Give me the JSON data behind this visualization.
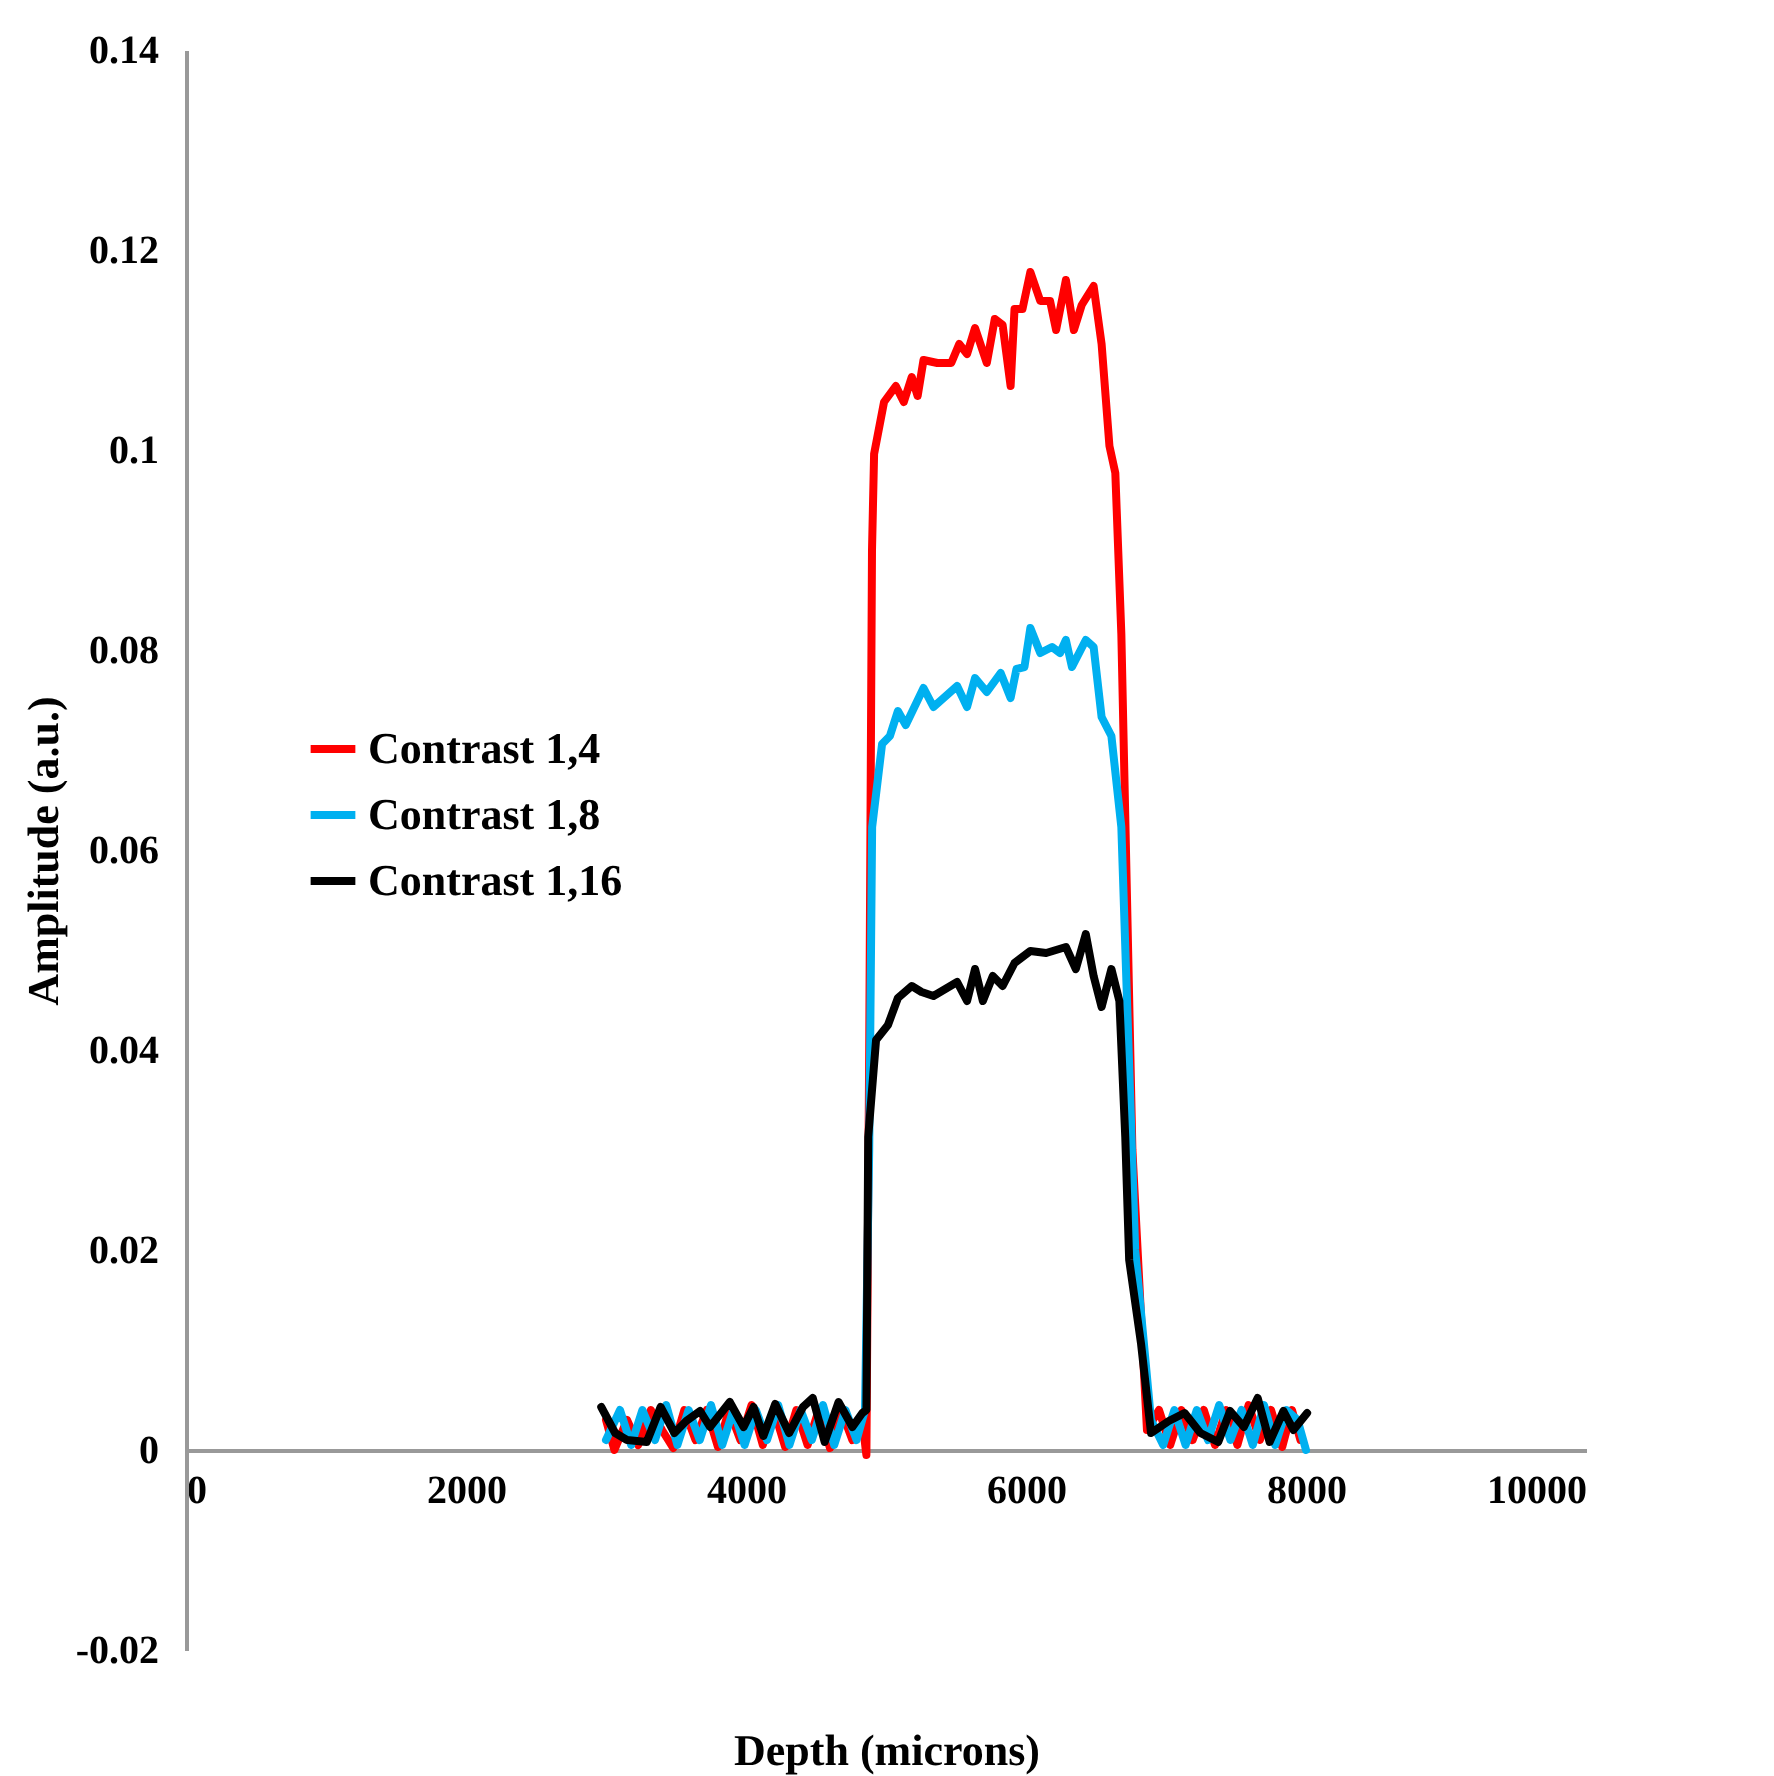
{
  "chart_data": {
    "type": "line",
    "xlabel": "Depth (microns)",
    "ylabel": "Amplitude (a.u.)",
    "xlim": [
      0,
      10000
    ],
    "xticks": [
      0,
      2000,
      4000,
      6000,
      8000,
      10000
    ],
    "ylim": [
      -0.02,
      0.14
    ],
    "yticks": [
      -0.02,
      0,
      0.02,
      0.04,
      0.06,
      0.08,
      0.1,
      0.12,
      0.14
    ],
    "grid": false,
    "legend": "left",
    "line_style": "solid",
    "series": [
      {
        "name": "Contrast 1,4",
        "color": "#ff0000",
        "x": [
          3000,
          3060,
          3150,
          3230,
          3320,
          3400,
          3480,
          3560,
          3640,
          3720,
          3800,
          3880,
          3960,
          4040,
          4120,
          4200,
          4280,
          4360,
          4440,
          4520,
          4600,
          4680,
          4760,
          4830,
          4860,
          4880,
          4900,
          4915,
          4986,
          5070,
          5127,
          5184,
          5226,
          5268,
          5367,
          5466,
          5523,
          5579,
          5636,
          5720,
          5777,
          5833,
          5890,
          5918,
          5975,
          6031,
          6102,
          6172,
          6215,
          6285,
          6342,
          6398,
          6483,
          6540,
          6596,
          6638,
          6681,
          6760,
          6864,
          6950,
          7030,
          7110,
          7190,
          7270,
          7350,
          7430,
          7510,
          7590,
          7670,
          7750,
          7830,
          7900,
          7960
        ],
        "values": [
          0.003,
          0.0,
          0.003,
          0.0005,
          0.004,
          0.002,
          0.0002,
          0.004,
          0.001,
          0.004,
          0.0003,
          0.004,
          0.001,
          0.0045,
          0.0005,
          0.004,
          0.0003,
          0.004,
          0.0005,
          0.004,
          0.0002,
          0.004,
          0.001,
          0.003,
          -0.0005,
          0.04,
          0.09,
          0.0996,
          0.1048,
          0.1064,
          0.1048,
          0.1073,
          0.1054,
          0.109,
          0.1087,
          0.1087,
          0.1106,
          0.1096,
          0.1122,
          0.1087,
          0.1131,
          0.1125,
          0.1064,
          0.1141,
          0.1141,
          0.1178,
          0.1149,
          0.1149,
          0.112,
          0.117,
          0.112,
          0.1145,
          0.1164,
          0.1106,
          0.1004,
          0.0977,
          0.0816,
          0.03,
          0.002,
          0.004,
          0.0005,
          0.004,
          0.001,
          0.004,
          0.0005,
          0.004,
          0.0005,
          0.0045,
          0.001,
          0.004,
          0.0003,
          0.004,
          0.001
        ]
      },
      {
        "name": "Contrast 1,8",
        "color": "#00b0f0",
        "x": [
          3000,
          3100,
          3180,
          3260,
          3350,
          3430,
          3510,
          3590,
          3670,
          3750,
          3830,
          3910,
          3990,
          4070,
          4150,
          4230,
          4310,
          4390,
          4470,
          4550,
          4630,
          4710,
          4790,
          4850,
          4880,
          4901,
          4972,
          5028,
          5085,
          5141,
          5268,
          5339,
          5508,
          5579,
          5636,
          5720,
          5819,
          5890,
          5932,
          5989,
          6031,
          6102,
          6186,
          6243,
          6285,
          6328,
          6427,
          6483,
          6540,
          6610,
          6681,
          6780,
          6893,
          6980,
          7060,
          7140,
          7220,
          7300,
          7380,
          7460,
          7540,
          7620,
          7700,
          7780,
          7860,
          7940,
          8000
        ],
        "values": [
          0.001,
          0.004,
          0.0005,
          0.004,
          0.001,
          0.0045,
          0.0005,
          0.004,
          0.001,
          0.0045,
          0.0005,
          0.004,
          0.0005,
          0.004,
          0.001,
          0.0045,
          0.0005,
          0.004,
          0.001,
          0.0045,
          0.0005,
          0.004,
          0.001,
          0.004,
          0.03,
          0.0623,
          0.0706,
          0.0714,
          0.0739,
          0.0725,
          0.0762,
          0.0743,
          0.0764,
          0.0743,
          0.0772,
          0.0758,
          0.0777,
          0.0752,
          0.0781,
          0.0783,
          0.0822,
          0.0797,
          0.0803,
          0.0797,
          0.081,
          0.0783,
          0.081,
          0.0803,
          0.0733,
          0.0714,
          0.0623,
          0.02,
          0.003,
          0.0005,
          0.004,
          0.0005,
          0.004,
          0.001,
          0.0045,
          0.001,
          0.004,
          0.0005,
          0.0045,
          0.0005,
          0.004,
          0.003,
          0.0
        ]
      },
      {
        "name": "Contrast 1,16",
        "color": "#000000",
        "x": [
          2966,
          3065,
          3150,
          3291,
          3390,
          3489,
          3573,
          3672,
          3743,
          3884,
          3983,
          4054,
          4124,
          4209,
          4308,
          4407,
          4477,
          4562,
          4661,
          4760,
          4831,
          4860,
          4873,
          4929,
          5014,
          5085,
          5184,
          5254,
          5339,
          5508,
          5579,
          5636,
          5692,
          5763,
          5833,
          5918,
          6031,
          6144,
          6285,
          6356,
          6427,
          6483,
          6540,
          6610,
          6667,
          6709,
          6737,
          6822,
          6893,
          7020,
          7133,
          7246,
          7373,
          7458,
          7556,
          7655,
          7740,
          7839,
          7910,
          8008
        ],
        "values": [
          0.0043,
          0.0017,
          0.001,
          0.0008,
          0.0043,
          0.0017,
          0.0029,
          0.0039,
          0.0023,
          0.0048,
          0.0023,
          0.0043,
          0.0014,
          0.0046,
          0.0017,
          0.0043,
          0.0052,
          0.0008,
          0.0048,
          0.0023,
          0.0037,
          0.004,
          0.0313,
          0.041,
          0.0425,
          0.0452,
          0.0464,
          0.0458,
          0.0454,
          0.0468,
          0.0449,
          0.0481,
          0.0449,
          0.0474,
          0.0464,
          0.0487,
          0.0499,
          0.0497,
          0.0503,
          0.0481,
          0.0516,
          0.0474,
          0.0443,
          0.0481,
          0.0449,
          0.0313,
          0.019,
          0.0106,
          0.0017,
          0.0029,
          0.0037,
          0.0017,
          0.0008,
          0.0039,
          0.0023,
          0.0052,
          0.0008,
          0.0039,
          0.002,
          0.0037
        ]
      }
    ]
  }
}
